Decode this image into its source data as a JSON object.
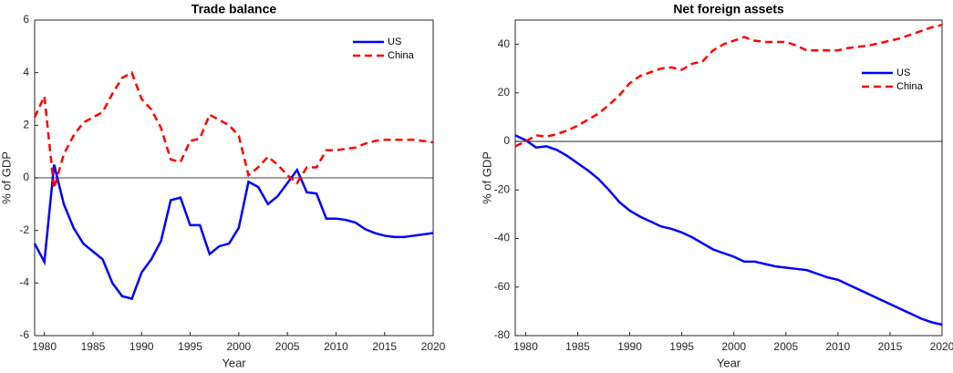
{
  "chart_data": [
    {
      "type": "line",
      "title": "Trade balance",
      "x_label": "Year",
      "y_label": "% of GDP",
      "x": [
        1979,
        1980,
        1981,
        1982,
        1983,
        1984,
        1985,
        1986,
        1987,
        1988,
        1989,
        1990,
        1991,
        1992,
        1993,
        1994,
        1995,
        1996,
        1997,
        1998,
        1999,
        2000,
        2001,
        2002,
        2003,
        2004,
        2005,
        2006,
        2007,
        2008,
        2009,
        2010,
        2011,
        2012,
        2013,
        2014,
        2015,
        2016,
        2017,
        2018,
        2019,
        2020
      ],
      "series": [
        {
          "name": "US",
          "color": "#0000ff",
          "dash": false,
          "values": [
            -2.5,
            -3.2,
            0.5,
            -1.0,
            -1.9,
            -2.5,
            -2.8,
            -3.1,
            -4.0,
            -4.5,
            -4.6,
            -3.6,
            -3.1,
            -2.4,
            -0.85,
            -0.75,
            -1.8,
            -1.8,
            -2.9,
            -2.6,
            -2.5,
            -1.9,
            -0.15,
            -0.35,
            -1.0,
            -0.7,
            -0.2,
            0.3,
            -0.55,
            -0.6,
            -1.55,
            -1.55,
            -1.6,
            -1.7,
            -1.95,
            -2.1,
            -2.2,
            -2.25,
            -2.25,
            -2.2,
            -2.15,
            -2.1
          ]
        },
        {
          "name": "China",
          "color": "#ff0000",
          "dash": true,
          "values": [
            2.3,
            3.1,
            -0.4,
            0.9,
            1.6,
            2.1,
            2.3,
            2.5,
            3.2,
            3.8,
            4.0,
            3.0,
            2.6,
            1.9,
            0.7,
            0.6,
            1.4,
            1.5,
            2.4,
            2.2,
            2.0,
            1.6,
            0.1,
            0.4,
            0.8,
            0.5,
            0.1,
            -0.2,
            0.4,
            0.4,
            1.05,
            1.05,
            1.1,
            1.15,
            1.3,
            1.4,
            1.45,
            1.45,
            1.45,
            1.45,
            1.4,
            1.35
          ]
        }
      ],
      "xlim": [
        1979,
        2020
      ],
      "xticks": [
        1980,
        1985,
        1990,
        1995,
        2000,
        2005,
        2010,
        2015,
        2020
      ],
      "ylim": [
        -6,
        6
      ],
      "yticks": [
        -6,
        -4,
        -2,
        0,
        2,
        4,
        6
      ],
      "zero_line": true,
      "legend": "northeast"
    },
    {
      "type": "line",
      "title": "Net foreign assets",
      "x_label": "Year",
      "y_label": "% of GDP",
      "x": [
        1979,
        1980,
        1981,
        1982,
        1983,
        1984,
        1985,
        1986,
        1987,
        1988,
        1989,
        1990,
        1991,
        1992,
        1993,
        1994,
        1995,
        1996,
        1997,
        1998,
        1999,
        2000,
        2001,
        2002,
        2003,
        2004,
        2005,
        2006,
        2007,
        2008,
        2009,
        2010,
        2011,
        2012,
        2013,
        2014,
        2015,
        2016,
        2017,
        2018,
        2019,
        2020
      ],
      "series": [
        {
          "name": "US",
          "color": "#0000ff",
          "dash": false,
          "values": [
            2.5,
            0.5,
            -2.5,
            -2,
            -3.5,
            -6,
            -9,
            -12,
            -15.5,
            -20,
            -25,
            -28.5,
            -31,
            -33,
            -35,
            -36,
            -37.5,
            -39.5,
            -42,
            -44.5,
            -46,
            -47.5,
            -49.5,
            -49.5,
            -50.5,
            -51.5,
            -52,
            -52.5,
            -53,
            -54.5,
            -56,
            -57,
            -59,
            -61,
            -63,
            -65,
            -67,
            -69,
            -71,
            -73,
            -74.5,
            -75.5
          ]
        },
        {
          "name": "China",
          "color": "#ff0000",
          "dash": true,
          "values": [
            -2,
            0,
            2.5,
            2,
            3,
            4.5,
            6.5,
            9,
            11.5,
            15,
            19,
            24,
            27,
            28.5,
            30,
            30.5,
            29.5,
            32,
            33,
            37.5,
            40,
            41.5,
            43,
            41.5,
            41,
            41,
            41,
            39.5,
            37.5,
            37.5,
            37.5,
            37.5,
            38.5,
            39,
            39.5,
            40.5,
            41.5,
            42.5,
            44,
            45.5,
            47,
            48
          ]
        }
      ],
      "xlim": [
        1979,
        2020
      ],
      "xticks": [
        1980,
        1985,
        1990,
        1995,
        2000,
        2005,
        2010,
        2015,
        2020
      ],
      "ylim": [
        -80,
        50
      ],
      "yticks": [
        -80,
        -60,
        -40,
        -20,
        0,
        20,
        40
      ],
      "zero_line": true,
      "legend": "northeast"
    }
  ]
}
